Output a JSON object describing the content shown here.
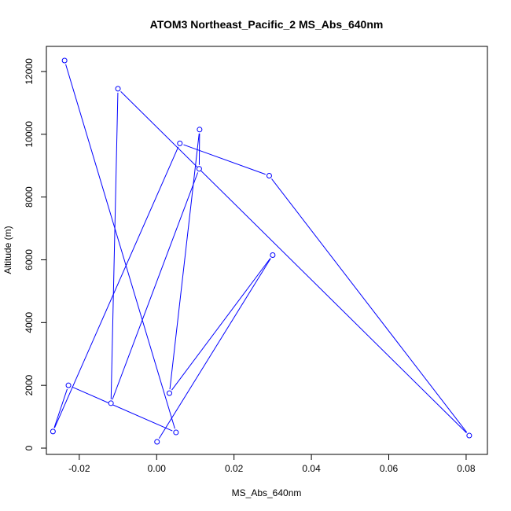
{
  "chart_data": {
    "type": "line",
    "title": "ATOM3 Northeast_Pacific_2 MS_Abs_640nm",
    "xlabel": "MS_Abs_640nm",
    "ylabel": "Altitude (m)",
    "xlim": [
      -0.0285,
      0.0855
    ],
    "ylim": [
      -200,
      12800
    ],
    "x_ticks": [
      -0.02,
      0,
      0.02,
      0.04,
      0.06,
      0.08
    ],
    "x_tick_labels": [
      "-0.02",
      "0.00",
      "0.02",
      "0.04",
      "0.06",
      "0.08"
    ],
    "y_ticks": [
      0,
      2000,
      4000,
      6000,
      8000,
      10000,
      12000
    ],
    "y_tick_labels": [
      "0",
      "2000",
      "4000",
      "6000",
      "8000",
      "10000",
      "12000"
    ],
    "grid": false,
    "legend": "none",
    "color": "#0000ff",
    "marker": "open circle",
    "series": [
      {
        "points": [
          {
            "x": 0.0001,
            "y": 200
          },
          {
            "x": 0.03,
            "y": 6150
          },
          {
            "x": 0.0033,
            "y": 1750
          },
          {
            "x": 0.0111,
            "y": 10150
          },
          {
            "x": 0.011,
            "y": 8900
          },
          {
            "x": -0.0118,
            "y": 1430
          },
          {
            "x": -0.01,
            "y": 11450
          },
          {
            "x": 0.0808,
            "y": 400
          },
          {
            "x": 0.0291,
            "y": 8680
          },
          {
            "x": 0.006,
            "y": 9710
          },
          {
            "x": -0.0268,
            "y": 530
          },
          {
            "x": -0.0228,
            "y": 2000
          },
          {
            "x": 0.005,
            "y": 500
          },
          {
            "x": -0.0238,
            "y": 12350
          }
        ]
      }
    ]
  }
}
